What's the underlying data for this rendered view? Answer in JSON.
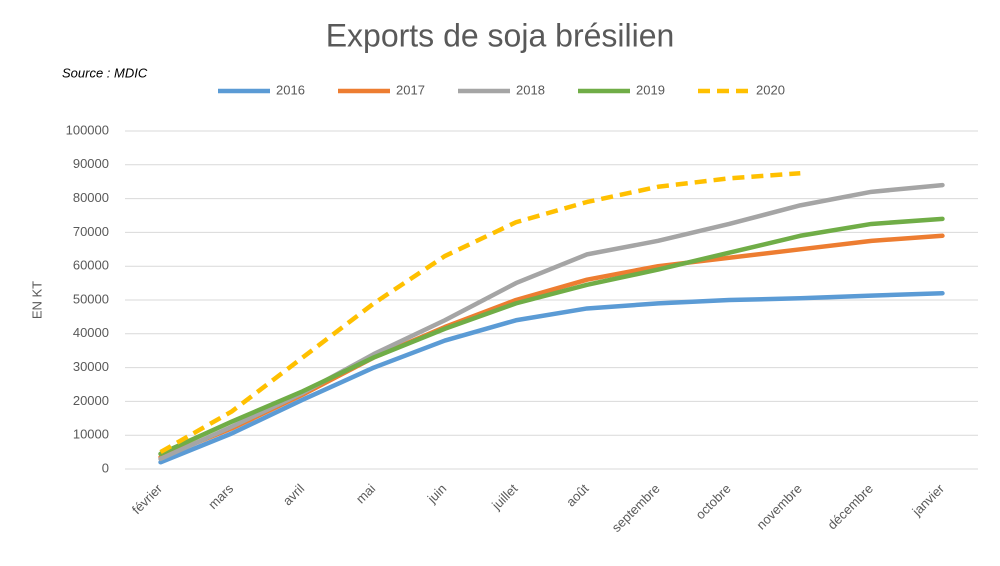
{
  "chart_data": {
    "type": "line",
    "title": "Exports de soja brésilien",
    "subtitle": "Source : MDIC",
    "y_label": "EN KT",
    "categories": [
      "février",
      "mars",
      "avril",
      "mai",
      "juin",
      "juillet",
      "août",
      "septembre",
      "octobre",
      "novembre",
      "décembre",
      "janvier"
    ],
    "series": [
      {
        "name": "2016",
        "color": "#5b9bd5",
        "values": [
          2000,
          10500,
          20500,
          30000,
          38000,
          44000,
          47500,
          49000,
          50000,
          50500,
          51300,
          52000
        ]
      },
      {
        "name": "2017",
        "color": "#ed7d31",
        "values": [
          3500,
          12000,
          22000,
          33000,
          42000,
          50000,
          56000,
          60000,
          62500,
          65000,
          67500,
          69000
        ]
      },
      {
        "name": "2018",
        "color": "#a5a5a5",
        "values": [
          3000,
          12500,
          22500,
          34000,
          44000,
          55000,
          63500,
          67500,
          72500,
          78000,
          82000,
          84000
        ]
      },
      {
        "name": "2019",
        "color": "#70ad47",
        "values": [
          4500,
          14000,
          23000,
          33000,
          41500,
          49000,
          54500,
          59000,
          64000,
          69000,
          72500,
          74000
        ]
      },
      {
        "name": "2020",
        "color": "#ffc000",
        "dashed": true,
        "values": [
          5000,
          17000,
          33000,
          49000,
          63000,
          73000,
          79000,
          83500,
          86000,
          87500,
          null,
          null
        ]
      }
    ],
    "ylim": [
      0,
      100000
    ],
    "yticks": [
      0,
      10000,
      20000,
      30000,
      40000,
      50000,
      60000,
      70000,
      80000,
      90000,
      100000
    ],
    "grid": true,
    "legend": "top"
  }
}
